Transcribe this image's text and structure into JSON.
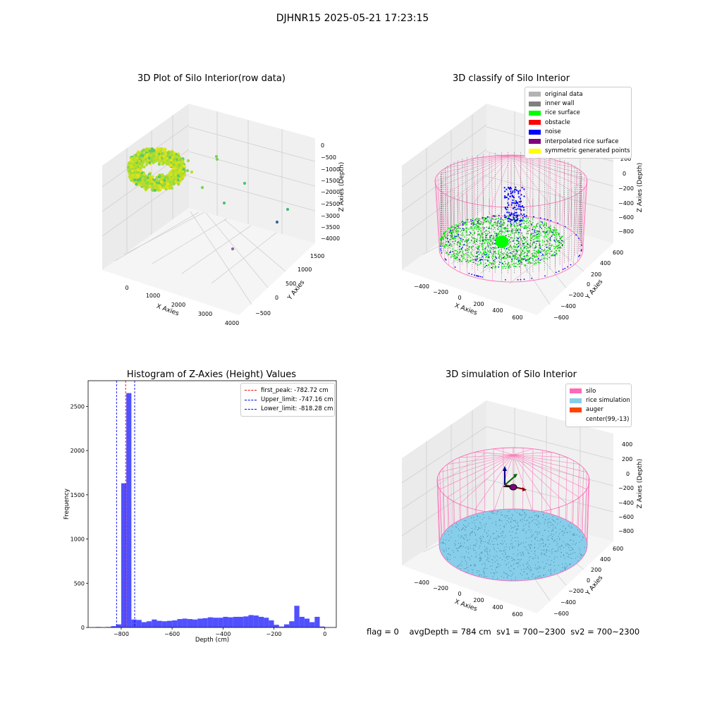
{
  "suptitle": "DJHNR15 2025-05-21 17:23:15",
  "panels": {
    "raw": {
      "title": "3D Plot of Silo Interior(row data)",
      "xlabel": "X Axies",
      "ylabel": "Y Axies",
      "zlabel": "Z Axies (Depth)",
      "xticks": [
        "0",
        "1000",
        "2000",
        "3000",
        "4000"
      ],
      "yticks": [
        "−500",
        "0",
        "500",
        "1000",
        "1500"
      ],
      "zticks": [
        "0",
        "−500",
        "−1000",
        "−1500",
        "−2000",
        "−2500",
        "−3000",
        "−3500",
        "−4000"
      ]
    },
    "classify": {
      "title": "3D classify of Silo Interior",
      "xlabel": "X Axies",
      "ylabel": "Y Axies",
      "zlabel": "Z Axies (Depth)",
      "xticks": [
        "−400",
        "−200",
        "0",
        "200",
        "400",
        "600"
      ],
      "yticks": [
        "−600",
        "−400",
        "−200",
        "0",
        "200",
        "400",
        "600"
      ],
      "zticks": [
        "200",
        "0",
        "−200",
        "−400",
        "−600",
        "−800"
      ],
      "legend": [
        {
          "label": "original data",
          "color": "#b3b3b3"
        },
        {
          "label": "inner wall",
          "color": "#808080"
        },
        {
          "label": "rice surface",
          "color": "#00ff00"
        },
        {
          "label": "obstacle",
          "color": "#ff0000"
        },
        {
          "label": "noise",
          "color": "#0000ff"
        },
        {
          "label": "interpolated rice surface",
          "color": "#800080"
        },
        {
          "label": "symmetric generated points",
          "color": "#ffff00"
        }
      ]
    },
    "sim": {
      "title": "3D simulation of Silo Interior",
      "xlabel": "X Axies",
      "ylabel": "Y Axies",
      "zlabel": "Z Axies (Depth)",
      "xticks": [
        "−400",
        "−200",
        "0",
        "200",
        "400",
        "600"
      ],
      "yticks": [
        "−600",
        "−400",
        "−200",
        "0",
        "200",
        "400",
        "600"
      ],
      "zticks": [
        "400",
        "200",
        "0",
        "−200",
        "−400",
        "−600",
        "−800"
      ],
      "legend": [
        {
          "label": "silo",
          "color": "#ff69b4"
        },
        {
          "label": "rice simulation",
          "color": "#87ceeb"
        },
        {
          "label": "auger",
          "color": "#ff4500"
        },
        {
          "label": "center(99,-13)",
          "color": ""
        }
      ]
    }
  },
  "status": {
    "flag": "flag = 0",
    "avg_depth": "avgDepth = 784 cm",
    "sv1": "sv1 = 700~2300",
    "sv2": "sv2 = 700~2300"
  },
  "chart_data": [
    {
      "type": "scatter",
      "title": "3D Plot of Silo Interior(row data)",
      "xlabel": "X Axies",
      "ylabel": "Y Axies",
      "zlabel": "Z Axies (Depth)",
      "xlim": [
        -500,
        4200
      ],
      "ylim": [
        -700,
        1700
      ],
      "zlim": [
        -4100,
        100
      ]
    },
    {
      "type": "scatter",
      "title": "3D classify of Silo Interior",
      "xlabel": "X Axies",
      "ylabel": "Y Axies",
      "zlabel": "Z Axies (Depth)",
      "series": [
        {
          "name": "original data"
        },
        {
          "name": "inner wall"
        },
        {
          "name": "rice surface"
        },
        {
          "name": "obstacle"
        },
        {
          "name": "noise"
        },
        {
          "name": "interpolated rice surface"
        },
        {
          "name": "symmetric generated points"
        }
      ],
      "legend": "upper-right"
    },
    {
      "type": "bar",
      "title": "Histogram of Z-Axies (Height) Values",
      "xlabel": "Depth (cm)",
      "ylabel": "Frequency",
      "xlim": [
        -930,
        45
      ],
      "ylim": [
        0,
        2790
      ],
      "xticks": [
        -800,
        -600,
        -400,
        -200,
        0
      ],
      "yticks": [
        0,
        500,
        1000,
        1500,
        2000,
        2500
      ],
      "bin_edges": [
        -920,
        -900,
        -880,
        -860,
        -840,
        -820,
        -800,
        -780,
        -760,
        -740,
        -720,
        -700,
        -680,
        -660,
        -640,
        -620,
        -600,
        -580,
        -560,
        -540,
        -520,
        -500,
        -480,
        -460,
        -440,
        -420,
        -400,
        -380,
        -360,
        -340,
        -320,
        -300,
        -280,
        -260,
        -240,
        -220,
        -200,
        -180,
        -160,
        -140,
        -120,
        -100,
        -80,
        -60,
        -40,
        -20,
        0
      ],
      "counts": [
        0,
        5,
        0,
        5,
        15,
        35,
        1630,
        2650,
        90,
        85,
        60,
        70,
        90,
        75,
        70,
        75,
        80,
        95,
        100,
        95,
        90,
        100,
        105,
        115,
        110,
        110,
        120,
        115,
        120,
        120,
        125,
        140,
        135,
        120,
        110,
        80,
        30,
        10,
        35,
        70,
        245,
        120,
        100,
        60,
        120,
        10
      ],
      "lines": [
        {
          "label": "first_peak: -782.72 cm",
          "x": -782.72,
          "color": "#ff0000"
        },
        {
          "label": "Upper_limit: -747.16 cm",
          "x": -747.16,
          "color": "#0000ff"
        },
        {
          "label": "Lower_limit: -818.28 cm",
          "x": -818.28,
          "color": "#0000ff"
        }
      ],
      "legend": "upper-right",
      "bar_color": "#4d4dff"
    },
    {
      "type": "scatter",
      "title": "3D simulation of Silo Interior",
      "xlabel": "X Axies",
      "ylabel": "Y Axies",
      "zlabel": "Z Axies (Depth)",
      "series": [
        {
          "name": "silo"
        },
        {
          "name": "rice simulation"
        },
        {
          "name": "auger"
        },
        {
          "name": "center(99,-13)"
        }
      ],
      "legend": "upper-right"
    }
  ]
}
